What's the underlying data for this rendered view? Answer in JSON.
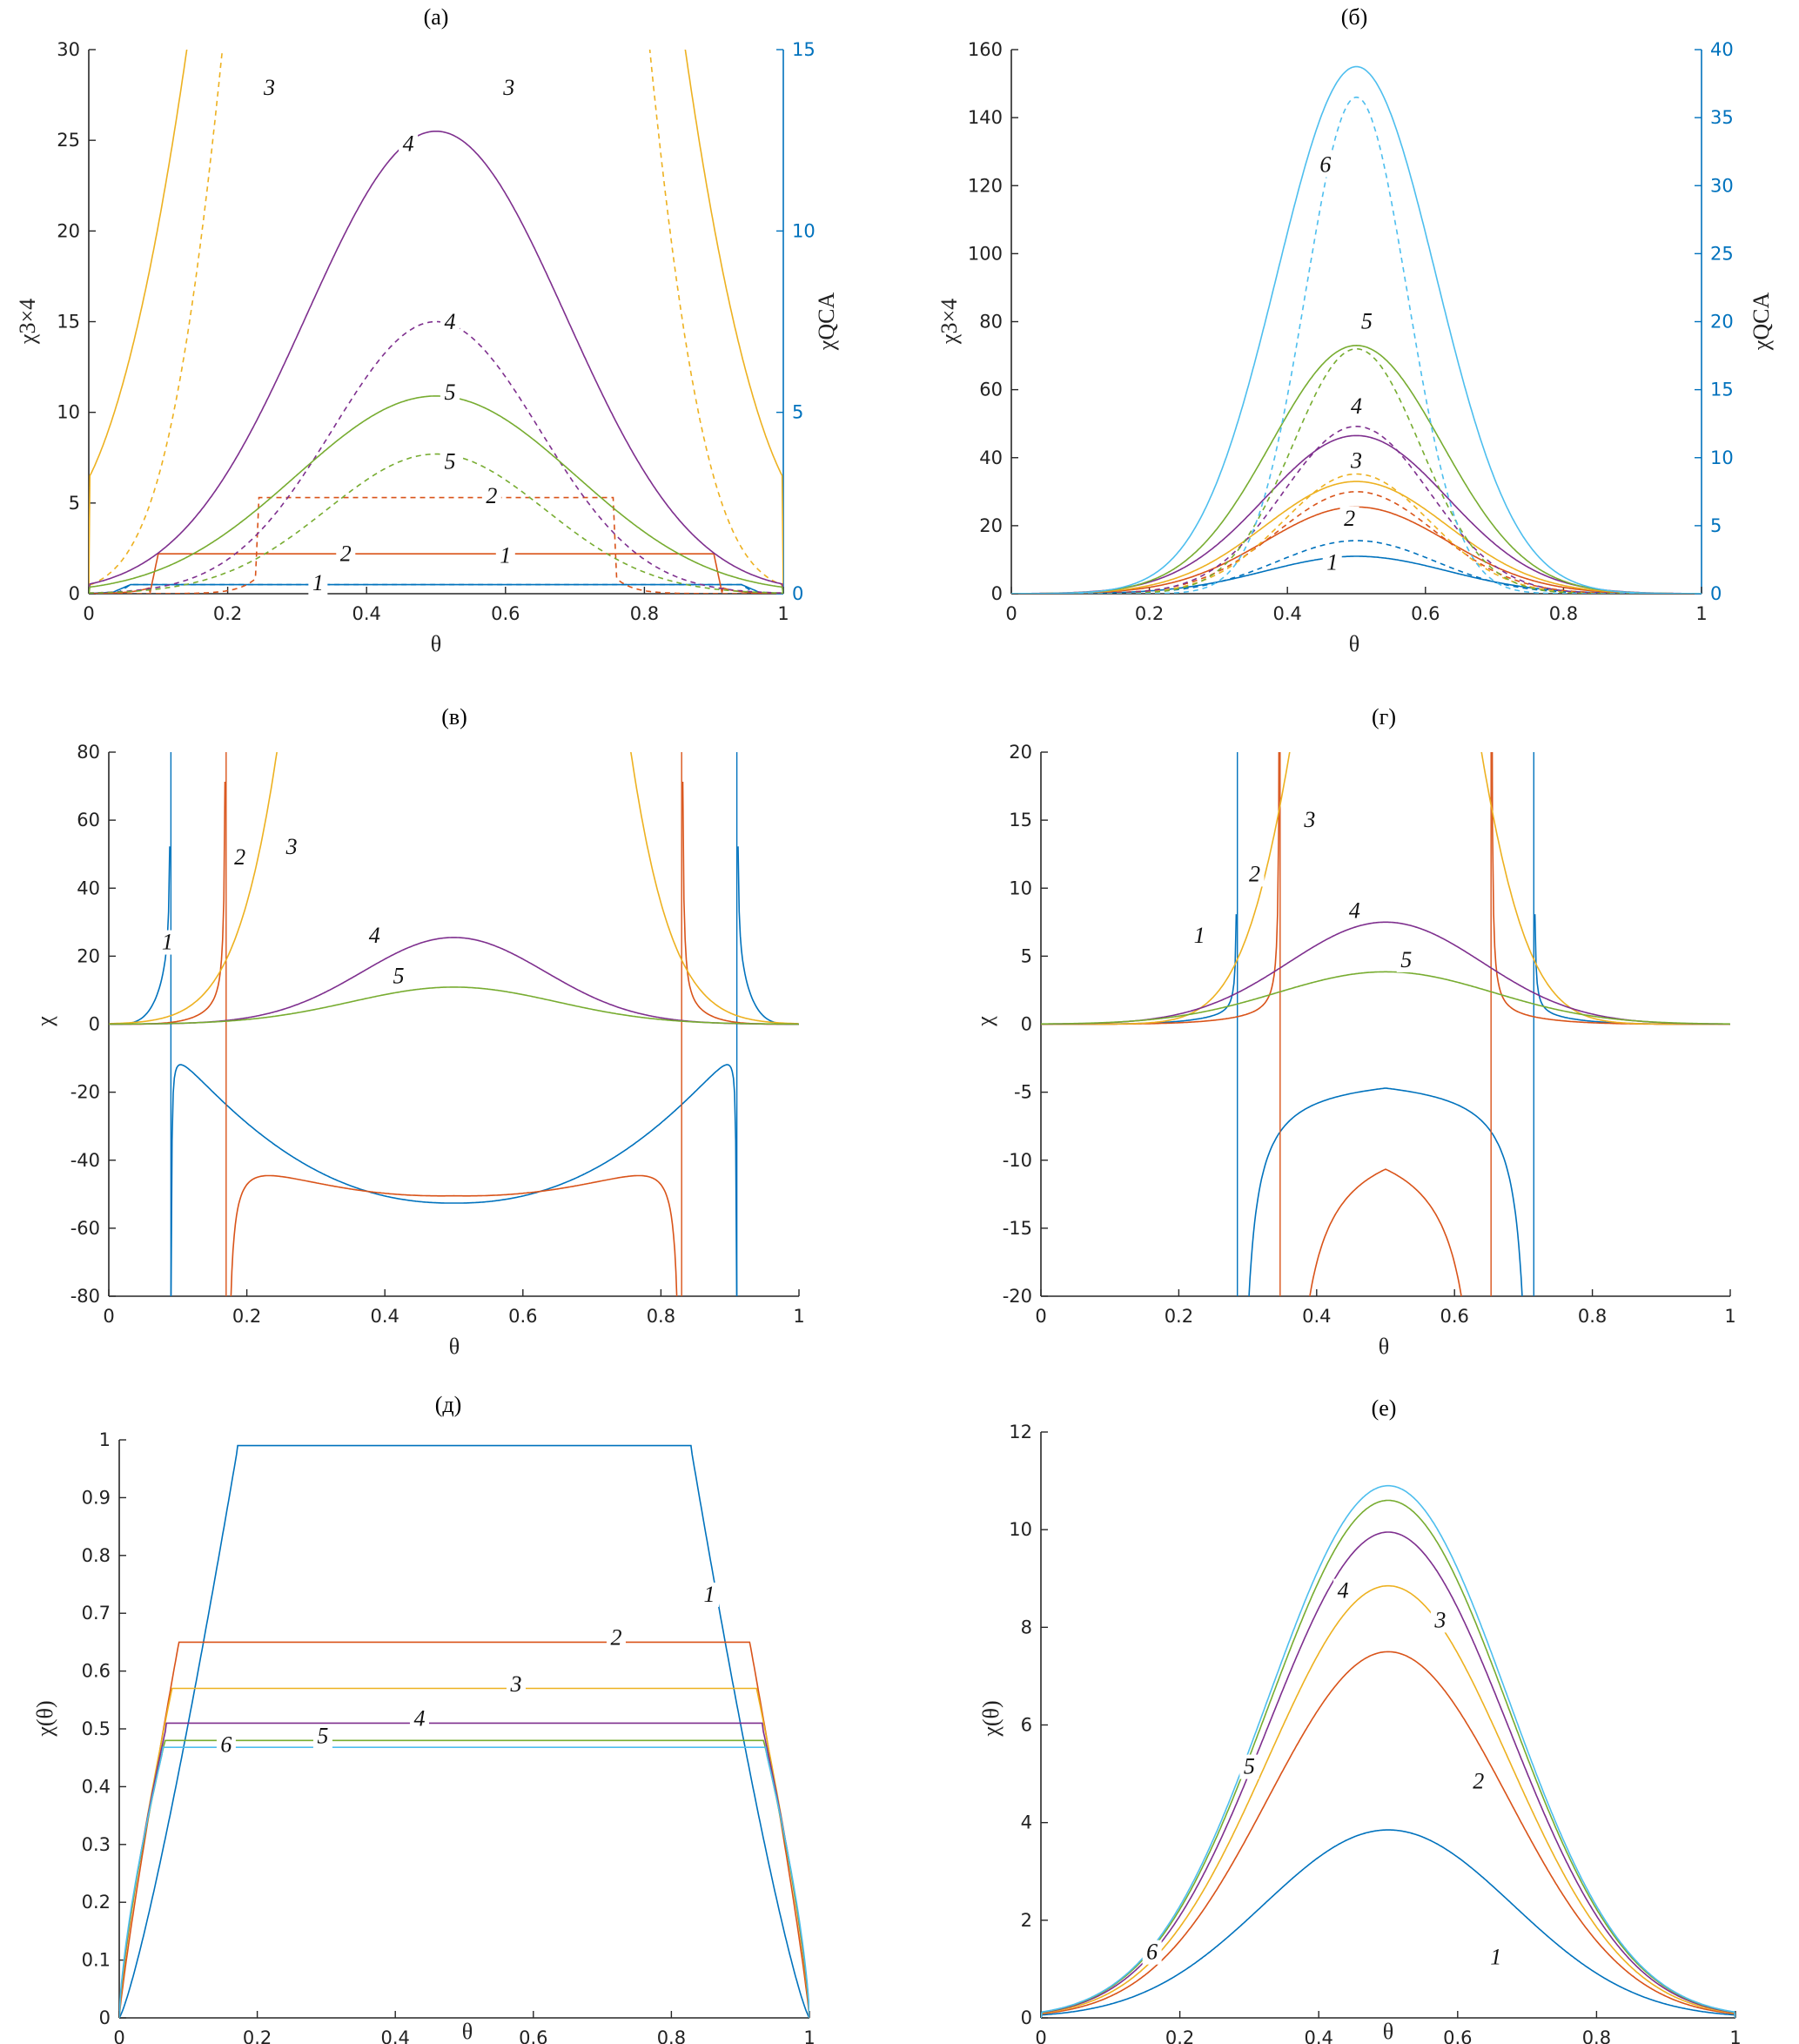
{
  "colors": {
    "c1": "#0072BD",
    "c2": "#D95319",
    "c3": "#EDB120",
    "c4": "#7E2F8E",
    "c5": "#77AC30",
    "c6": "#4DBEEE",
    "axis": "#262626",
    "right_axis": "#0072BD"
  },
  "chart_data": [
    {
      "id": "a",
      "type": "line",
      "title": "(а)",
      "xlabel": "θ",
      "ylabel": "χ3×4",
      "ylabel_right": "χQCA",
      "xlim": [
        0,
        1
      ],
      "ylim": [
        0,
        30
      ],
      "ylim_right": [
        0,
        15
      ],
      "xticks": [
        "0",
        "0.2",
        "0.4",
        "0.6",
        "0.8",
        "1"
      ],
      "yticks": [
        "0",
        "5",
        "10",
        "15",
        "20",
        "25",
        "30"
      ],
      "yticks_right": [
        "0",
        "5",
        "10",
        "15"
      ],
      "series": [
        {
          "label": "1",
          "style": "solid",
          "axis": "left",
          "color": "c1",
          "shape": "plateau",
          "params": {
            "t0": 0.06,
            "t1": 0.94,
            "h": 0.5,
            "ramp": 0.03
          }
        },
        {
          "label": "1",
          "style": "dashed",
          "axis": "right",
          "color": "c1",
          "shape": "plateau",
          "params": {
            "t0": 0.06,
            "t1": 0.94,
            "h": 0.25,
            "ramp": 0.02
          }
        },
        {
          "label": "2",
          "style": "solid",
          "axis": "left",
          "color": "c2",
          "shape": "plateau",
          "params": {
            "t0": 0.1,
            "t1": 0.9,
            "h": 2.2,
            "ramp": 0.012
          }
        },
        {
          "label": "2",
          "style": "dashed",
          "axis": "right",
          "color": "c2",
          "shape": "plateau",
          "params": {
            "t0": 0.245,
            "t1": 0.755,
            "h": 2.65,
            "ramp": 0.006
          }
        },
        {
          "label": "3",
          "style": "solid",
          "axis": "left",
          "color": "c3",
          "shape": "peak",
          "params": {
            "p": 135,
            "w": 0.25,
            "e": 2.0
          }
        },
        {
          "label": "3",
          "style": "dashed",
          "axis": "right",
          "color": "c3",
          "shape": "peak",
          "params": {
            "p": 60,
            "w": 0.24,
            "e": 3.0
          }
        },
        {
          "label": "4",
          "style": "solid",
          "axis": "left",
          "color": "c4",
          "shape": "peak",
          "params": {
            "p": 25.5,
            "w": 0.21,
            "e": 2.0
          }
        },
        {
          "label": "4",
          "style": "dashed",
          "axis": "right",
          "color": "c4",
          "shape": "peak",
          "params": {
            "p": 7.5,
            "w": 0.16,
            "e": 2.0
          }
        },
        {
          "label": "5",
          "style": "solid",
          "axis": "left",
          "color": "c5",
          "shape": "peak",
          "params": {
            "p": 10.9,
            "w": 0.23,
            "e": 2.0
          }
        },
        {
          "label": "5",
          "style": "dashed",
          "axis": "right",
          "color": "c5",
          "shape": "peak",
          "params": {
            "p": 3.85,
            "w": 0.17,
            "e": 2.0
          }
        }
      ],
      "annotations": [
        {
          "text": "3",
          "x": 0.26,
          "y": 27.5
        },
        {
          "text": "3",
          "x": 0.605,
          "y": 27.5
        },
        {
          "text": "4",
          "x": 0.46,
          "y": 24.4
        },
        {
          "text": "4",
          "x": 0.52,
          "y": 14.6
        },
        {
          "text": "5",
          "x": 0.52,
          "y": 10.7
        },
        {
          "text": "5",
          "x": 0.52,
          "y": 6.9
        },
        {
          "text": "2",
          "x": 0.58,
          "y": 5.0
        },
        {
          "text": "2",
          "x": 0.37,
          "y": 1.8
        },
        {
          "text": "1",
          "x": 0.6,
          "y": 1.7
        },
        {
          "text": "1",
          "x": 0.33,
          "y": 0.2
        }
      ]
    },
    {
      "id": "b",
      "type": "line",
      "title": "(б)",
      "xlabel": "θ",
      "ylabel": "χ3×4",
      "ylabel_right": "χQCA",
      "xlim": [
        0,
        1
      ],
      "ylim": [
        0,
        160
      ],
      "ylim_right": [
        0,
        40
      ],
      "xticks": [
        "0",
        "0.2",
        "0.4",
        "0.6",
        "0.8",
        "1"
      ],
      "yticks": [
        "0",
        "20",
        "40",
        "60",
        "80",
        "100",
        "120",
        "140",
        "160"
      ],
      "yticks_right": [
        "0",
        "5",
        "10",
        "15",
        "20",
        "25",
        "30",
        "35",
        "40"
      ],
      "series": [
        {
          "label": "1",
          "style": "solid",
          "axis": "left",
          "color": "c1",
          "shape": "peak",
          "params": {
            "p": 11,
            "w": 0.14,
            "e": 2.0
          }
        },
        {
          "label": "1",
          "style": "dashed",
          "axis": "right",
          "color": "c1",
          "shape": "peak",
          "params": {
            "p": 3.9,
            "w": 0.12,
            "e": 2.0
          }
        },
        {
          "label": "2",
          "style": "solid",
          "axis": "left",
          "color": "c2",
          "shape": "peak",
          "params": {
            "p": 25.5,
            "w": 0.14,
            "e": 2.0
          }
        },
        {
          "label": "2",
          "style": "dashed",
          "axis": "right",
          "color": "c2",
          "shape": "peak",
          "params": {
            "p": 7.5,
            "w": 0.12,
            "e": 2.0
          }
        },
        {
          "label": "3",
          "style": "solid",
          "axis": "left",
          "color": "c3",
          "shape": "peak",
          "params": {
            "p": 33,
            "w": 0.14,
            "e": 2.0
          }
        },
        {
          "label": "3",
          "style": "dashed",
          "axis": "right",
          "color": "c3",
          "shape": "peak",
          "params": {
            "p": 8.8,
            "w": 0.11,
            "e": 2.0
          }
        },
        {
          "label": "4",
          "style": "solid",
          "axis": "left",
          "color": "c4",
          "shape": "peak",
          "params": {
            "p": 46.5,
            "w": 0.14,
            "e": 2.0
          }
        },
        {
          "label": "4",
          "style": "dashed",
          "axis": "right",
          "color": "c4",
          "shape": "peak",
          "params": {
            "p": 12.3,
            "w": 0.11,
            "e": 2.0
          }
        },
        {
          "label": "5",
          "style": "solid",
          "axis": "left",
          "color": "c5",
          "shape": "peak",
          "params": {
            "p": 73,
            "w": 0.13,
            "e": 2.0
          }
        },
        {
          "label": "5",
          "style": "dashed",
          "axis": "right",
          "color": "c5",
          "shape": "peak",
          "params": {
            "p": 18,
            "w": 0.095,
            "e": 2.0
          }
        },
        {
          "label": "6",
          "style": "solid",
          "axis": "left",
          "color": "c6",
          "shape": "peak",
          "params": {
            "p": 155,
            "w": 0.12,
            "e": 2.0
          }
        },
        {
          "label": "6",
          "style": "dashed",
          "axis": "right",
          "color": "c6",
          "shape": "peak",
          "params": {
            "p": 36.5,
            "w": 0.075,
            "e": 2.0
          }
        }
      ],
      "annotations": [
        {
          "text": "6",
          "x": 0.455,
          "y": 124
        },
        {
          "text": "5",
          "x": 0.515,
          "y": 78
        },
        {
          "text": "4",
          "x": 0.5,
          "y": 53
        },
        {
          "text": "3",
          "x": 0.5,
          "y": 37
        },
        {
          "text": "2",
          "x": 0.49,
          "y": 20
        },
        {
          "text": "1",
          "x": 0.465,
          "y": 7
        }
      ]
    },
    {
      "id": "v",
      "type": "line",
      "title": "(в)",
      "xlabel": "θ",
      "ylabel": "χ",
      "xlim": [
        0,
        1
      ],
      "ylim": [
        -80,
        80
      ],
      "xticks": [
        "0",
        "0.2",
        "0.4",
        "0.6",
        "0.8",
        "1"
      ],
      "yticks": [
        "-80",
        "-60",
        "-40",
        "-20",
        "0",
        "20",
        "40",
        "60",
        "80"
      ],
      "series": [
        {
          "label": "1",
          "style": "solid",
          "color": "c1",
          "shape": "split",
          "params": {
            "pole": 0.09,
            "k": 0.06,
            "a": 110,
            "amin": -5,
            "amid": -52.5
          }
        },
        {
          "label": "2",
          "style": "solid",
          "color": "c2",
          "shape": "split",
          "params": {
            "pole": 0.17,
            "k": 0.4,
            "a": 32,
            "amin": -33.5,
            "amid": -49.5
          }
        },
        {
          "label": "3",
          "style": "solid",
          "color": "c3",
          "shape": "peak",
          "params": {
            "p": 700,
            "w": 0.13,
            "e": 2.0
          }
        },
        {
          "label": "4",
          "style": "solid",
          "color": "c4",
          "shape": "peak",
          "params": {
            "p": 25.5,
            "w": 0.14,
            "e": 2.0
          }
        },
        {
          "label": "5",
          "style": "solid",
          "color": "c5",
          "shape": "peak",
          "params": {
            "p": 10.9,
            "w": 0.16,
            "e": 2.0
          }
        }
      ],
      "annotations": [
        {
          "text": "1",
          "x": 0.085,
          "y": 22
        },
        {
          "text": "2",
          "x": 0.19,
          "y": 47
        },
        {
          "text": "3",
          "x": 0.265,
          "y": 50
        },
        {
          "text": "4",
          "x": 0.385,
          "y": 24
        },
        {
          "text": "5",
          "x": 0.42,
          "y": 12
        }
      ]
    },
    {
      "id": "g",
      "type": "line",
      "title": "(г)",
      "xlabel": "θ",
      "ylabel": "χ",
      "xlim": [
        0,
        1
      ],
      "ylim": [
        -20,
        20
      ],
      "xticks": [
        "0",
        "0.2",
        "0.4",
        "0.6",
        "0.8",
        "1"
      ],
      "yticks": [
        "-20",
        "-15",
        "-10",
        "-5",
        "0",
        "5",
        "10",
        "15",
        "20"
      ],
      "series": [
        {
          "label": "1",
          "style": "solid",
          "color": "c1",
          "shape": "split",
          "params": {
            "pole": 0.285,
            "k": 0.35,
            "a": 4,
            "amin": -3.4,
            "amid": -3.4
          }
        },
        {
          "label": "2",
          "style": "solid",
          "color": "c2",
          "shape": "split",
          "params": {
            "pole": 0.347,
            "k": 0.7,
            "a": 4.5,
            "amin": -7,
            "amid": -7
          }
        },
        {
          "label": "3",
          "style": "solid",
          "color": "c3",
          "shape": "peak",
          "params": {
            "p": 56,
            "w": 0.1,
            "e": 2.0
          }
        },
        {
          "label": "4",
          "style": "solid",
          "color": "c4",
          "shape": "peak",
          "params": {
            "p": 7.5,
            "w": 0.15,
            "e": 2.0
          }
        },
        {
          "label": "5",
          "style": "solid",
          "color": "c5",
          "shape": "peak",
          "params": {
            "p": 3.85,
            "w": 0.17,
            "e": 2.0
          }
        }
      ],
      "annotations": [
        {
          "text": "1",
          "x": 0.23,
          "y": 6
        },
        {
          "text": "2",
          "x": 0.31,
          "y": 10.5
        },
        {
          "text": "3",
          "x": 0.39,
          "y": 14.5
        },
        {
          "text": "4",
          "x": 0.455,
          "y": 7.8
        },
        {
          "text": "5",
          "x": 0.53,
          "y": 4.2
        }
      ]
    },
    {
      "id": "d",
      "type": "line",
      "title": "(д)",
      "xlabel": "θ",
      "ylabel": "χ(θ)",
      "xlim": [
        0,
        1
      ],
      "ylim": [
        0,
        1
      ],
      "xticks": [
        "0",
        "0.2",
        "0.4",
        "0.6",
        "0.8",
        "1"
      ],
      "yticks": [
        "0",
        "0.1",
        "0.2",
        "0.3",
        "0.4",
        "0.5",
        "0.6",
        "0.7",
        "0.8",
        "0.9",
        "1"
      ],
      "series": [
        {
          "label": "1",
          "style": "solid",
          "color": "c1",
          "shape": "rise",
          "params": {
            "t0": 0.17,
            "t1": 0.83,
            "h": 0.99,
            "e": 1.8
          }
        },
        {
          "label": "2",
          "style": "solid",
          "color": "c2",
          "shape": "rise",
          "params": {
            "t0": 0.085,
            "t1": 0.915,
            "h": 0.65,
            "e": 2.5
          }
        },
        {
          "label": "3",
          "style": "solid",
          "color": "c3",
          "shape": "rise",
          "params": {
            "t0": 0.075,
            "t1": 0.925,
            "h": 0.57,
            "e": 2.8
          }
        },
        {
          "label": "4",
          "style": "solid",
          "color": "c4",
          "shape": "rise",
          "params": {
            "t0": 0.068,
            "t1": 0.932,
            "h": 0.51,
            "e": 3.0
          }
        },
        {
          "label": "5",
          "style": "solid",
          "color": "c5",
          "shape": "rise",
          "params": {
            "t0": 0.065,
            "t1": 0.935,
            "h": 0.48,
            "e": 3.1
          }
        },
        {
          "label": "6",
          "style": "solid",
          "color": "c6",
          "shape": "rise",
          "params": {
            "t0": 0.063,
            "t1": 0.937,
            "h": 0.468,
            "e": 3.2
          }
        }
      ],
      "annotations": [
        {
          "text": "1",
          "x": 0.855,
          "y": 0.72
        },
        {
          "text": "2",
          "x": 0.72,
          "y": 0.645
        },
        {
          "text": "3",
          "x": 0.575,
          "y": 0.565
        },
        {
          "text": "4",
          "x": 0.435,
          "y": 0.505
        },
        {
          "text": "5",
          "x": 0.295,
          "y": 0.475
        },
        {
          "text": "6",
          "x": 0.155,
          "y": 0.46
        }
      ]
    },
    {
      "id": "e",
      "type": "line",
      "title": "(е)",
      "xlabel": "θ",
      "ylabel": "χ(θ)",
      "xlim": [
        0,
        1
      ],
      "ylim": [
        0,
        12
      ],
      "xticks": [
        "0",
        "0.2",
        "0.4",
        "0.6",
        "0.8",
        "1"
      ],
      "yticks": [
        "0",
        "2",
        "4",
        "6",
        "8",
        "10",
        "12"
      ],
      "series": [
        {
          "label": "1",
          "style": "solid",
          "color": "c1",
          "shape": "peak",
          "params": {
            "p": 3.85,
            "w": 0.2,
            "e": 2.0
          }
        },
        {
          "label": "2",
          "style": "solid",
          "color": "c2",
          "shape": "peak",
          "params": {
            "p": 7.5,
            "w": 0.19,
            "e": 2.0
          }
        },
        {
          "label": "3",
          "style": "solid",
          "color": "c3",
          "shape": "peak",
          "params": {
            "p": 8.85,
            "w": 0.19,
            "e": 2.0
          }
        },
        {
          "label": "4",
          "style": "solid",
          "color": "c4",
          "shape": "peak",
          "params": {
            "p": 9.95,
            "w": 0.19,
            "e": 2.0
          }
        },
        {
          "label": "5",
          "style": "solid",
          "color": "c5",
          "shape": "peak",
          "params": {
            "p": 10.6,
            "w": 0.19,
            "e": 2.0
          }
        },
        {
          "label": "6",
          "style": "solid",
          "color": "c6",
          "shape": "peak",
          "params": {
            "p": 10.9,
            "w": 0.19,
            "e": 2.0
          }
        }
      ],
      "annotations": [
        {
          "text": "1",
          "x": 0.655,
          "y": 1.1
        },
        {
          "text": "2",
          "x": 0.63,
          "y": 4.7
        },
        {
          "text": "3",
          "x": 0.575,
          "y": 8.0
        },
        {
          "text": "4",
          "x": 0.435,
          "y": 8.6
        },
        {
          "text": "5",
          "x": 0.3,
          "y": 5.0
        },
        {
          "text": "6",
          "x": 0.16,
          "y": 1.2
        }
      ]
    }
  ]
}
